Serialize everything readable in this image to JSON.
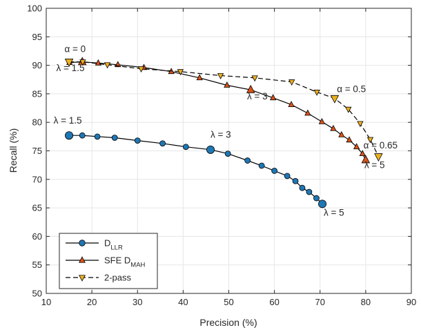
{
  "chart_data": {
    "type": "line",
    "xlabel": "Precision (%)",
    "ylabel": "Recall (%)",
    "xlim": [
      10,
      90
    ],
    "ylim": [
      50,
      100
    ],
    "xticks": [
      10,
      20,
      30,
      40,
      50,
      60,
      70,
      80,
      90
    ],
    "yticks": [
      50,
      55,
      60,
      65,
      70,
      75,
      80,
      85,
      90,
      95,
      100
    ],
    "grid": true,
    "legend_position": "bottom-left",
    "series": [
      {
        "name": "D_LLR",
        "legend_main": "D",
        "legend_sub": "LLR",
        "marker": "circle",
        "line": "solid",
        "color": "#1f77b4",
        "x": [
          15.0,
          17.9,
          21.2,
          25.0,
          30.0,
          35.5,
          40.6,
          46.0,
          49.8,
          54.1,
          57.2,
          60.0,
          62.8,
          64.6,
          66.1,
          67.6,
          69.2,
          70.5
        ],
        "y": [
          77.7,
          77.7,
          77.5,
          77.3,
          76.8,
          76.3,
          75.7,
          75.2,
          74.5,
          73.3,
          72.4,
          71.5,
          70.6,
          69.7,
          68.5,
          67.8,
          66.7,
          65.7
        ],
        "highlight_indices": [
          0,
          7,
          17
        ]
      },
      {
        "name": "SFE D_MAH",
        "legend_main": "SFE D",
        "legend_sub": "MAH",
        "marker": "triangle-up",
        "line": "solid",
        "color": "#d95319",
        "x": [
          15.1,
          17.9,
          21.4,
          25.7,
          31.4,
          37.4,
          43.6,
          49.6,
          54.8,
          59.7,
          63.7,
          67.3,
          70.4,
          72.9,
          74.7,
          76.4,
          78.0,
          79.3,
          80.0
        ],
        "y": [
          90.5,
          90.6,
          90.4,
          90.1,
          89.6,
          88.9,
          87.8,
          86.5,
          85.7,
          84.3,
          83.1,
          81.6,
          80.1,
          78.9,
          77.8,
          76.9,
          75.7,
          74.5,
          73.4
        ],
        "highlight_indices": [
          1,
          8,
          18
        ]
      },
      {
        "name": "2-pass",
        "legend_main": "2-pass",
        "legend_sub": "",
        "marker": "triangle-down",
        "line": "dashed",
        "color": "#edb120",
        "x": [
          15.0,
          18.0,
          23.4,
          30.8,
          39.4,
          48.2,
          55.7,
          63.8,
          69.3,
          73.2,
          76.2,
          78.8,
          81.0,
          82.8
        ],
        "y": [
          90.6,
          90.6,
          90.1,
          89.4,
          88.9,
          88.2,
          87.8,
          87.1,
          85.3,
          84.2,
          82.3,
          79.8,
          77.0,
          74.0
        ],
        "highlight_indices": [
          0,
          9,
          13
        ]
      }
    ],
    "annotations": [
      {
        "text": "α = 0",
        "x": 14.0,
        "y": 92.3
      },
      {
        "text": "λ = 1.5",
        "x": 12.2,
        "y": 89.0
      },
      {
        "text": "λ = 1.5",
        "x": 11.6,
        "y": 79.8
      },
      {
        "text": "λ = 3",
        "x": 54.0,
        "y": 84.0
      },
      {
        "text": "λ = 3",
        "x": 46.0,
        "y": 77.3
      },
      {
        "text": "α = 0.5",
        "x": 73.7,
        "y": 85.3
      },
      {
        "text": "α = 0.65",
        "x": 79.5,
        "y": 75.4
      },
      {
        "text": "λ = 5",
        "x": 79.7,
        "y": 72.0
      },
      {
        "text": "λ = 5",
        "x": 70.8,
        "y": 63.6
      }
    ]
  }
}
